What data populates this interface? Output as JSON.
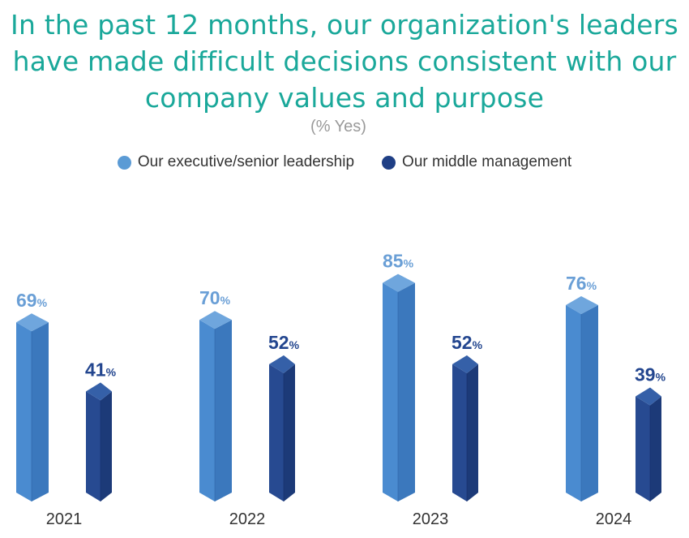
{
  "chart_data": {
    "type": "bar",
    "title_lines": [
      "In the past 12 months, our organization's leaders",
      "have made difficult decisions consistent with our",
      "company values and purpose"
    ],
    "subtitle": "(% Yes)",
    "categories": [
      "2021",
      "2022",
      "2023",
      "2024"
    ],
    "series": [
      {
        "name": "Our executive/senior leadership",
        "values": [
          69,
          70,
          85,
          76
        ],
        "color": "#5b9bd5"
      },
      {
        "name": "Our middle management",
        "values": [
          41,
          52,
          52,
          39
        ],
        "color": "#1f3f85"
      }
    ],
    "value_suffix": "%",
    "legend_position": "top-center",
    "grid": false
  }
}
